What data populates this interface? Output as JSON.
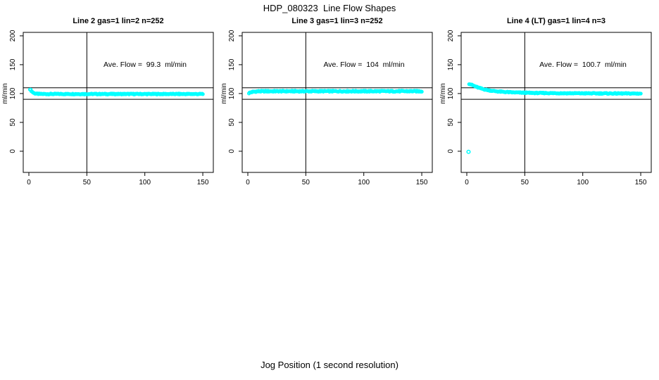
{
  "figure": {
    "title": "HDP_080323  Line Flow Shapes",
    "xlabel": "Jog Position (1 second resolution)",
    "background": "#ffffff"
  },
  "chart_data": {
    "type": "scatter",
    "title": "HDP_080323  Line Flow Shapes",
    "xlabel": "Jog Position (1 second resolution)",
    "ylabel": "ml/min",
    "point_color": "#00ffff",
    "axis_color": "#000000",
    "x_ticks": [
      0,
      50,
      100,
      150
    ],
    "y_ticks": [
      0,
      50,
      100,
      150,
      200
    ],
    "xlim": [
      -5,
      157
    ],
    "ylim": [
      -36,
      206
    ],
    "grid": false,
    "ref_lines_y": [
      90,
      110
    ],
    "ref_line_x": 50,
    "n_points": 252,
    "annotation_pos": {
      "x": 100,
      "y": 150
    },
    "panels": [
      {
        "title": "Line 2 gas=1 lin=2 n=252",
        "ave_flow": 99.3,
        "ave_flow_text": "Ave. Flow =  99.3  ml/min",
        "spread": 1.6,
        "profile": [
          [
            1,
            107.5
          ],
          [
            1.6,
            106.0
          ],
          [
            2.2,
            104.5
          ],
          [
            3,
            102.8
          ],
          [
            4,
            101.3
          ],
          [
            5,
            100.4
          ],
          [
            6.5,
            99.7
          ],
          [
            8,
            99.4
          ],
          [
            12,
            99.2
          ],
          [
            150,
            99.2
          ]
        ],
        "outliers": []
      },
      {
        "title": "Line 3 gas=1 lin=3 n=252",
        "ave_flow": 104,
        "ave_flow_text": "Ave. Flow =  104  ml/min",
        "spread": 2.0,
        "profile": [
          [
            1,
            100.8
          ],
          [
            2,
            101.7
          ],
          [
            3,
            102.4
          ],
          [
            4.5,
            103.0
          ],
          [
            6,
            103.4
          ],
          [
            9,
            103.8
          ],
          [
            14,
            104.0
          ],
          [
            150,
            104.0
          ]
        ],
        "outliers": []
      },
      {
        "title": "Line 4 (LT) gas=1 lin=4 n=3",
        "ave_flow": 100.7,
        "ave_flow_text": "Ave. Flow =  100.7  ml/min",
        "spread": 1.6,
        "profile": [
          [
            2,
            117
          ],
          [
            3,
            116.2
          ],
          [
            4,
            115.3
          ],
          [
            5,
            114.4
          ],
          [
            6,
            113.5
          ],
          [
            8,
            111.8
          ],
          [
            10,
            110.3
          ],
          [
            12,
            109.0
          ],
          [
            14,
            107.8
          ],
          [
            16,
            106.8
          ],
          [
            18,
            106.0
          ],
          [
            20,
            105.3
          ],
          [
            24,
            104.2
          ],
          [
            28,
            103.4
          ],
          [
            32,
            102.8
          ],
          [
            36,
            102.4
          ],
          [
            40,
            102.0
          ],
          [
            50,
            101.4
          ],
          [
            60,
            101.0
          ],
          [
            80,
            100.6
          ],
          [
            100,
            100.4
          ],
          [
            120,
            100.2
          ],
          [
            150,
            100.0
          ]
        ],
        "outliers": [
          [
            1.5,
            -1
          ]
        ]
      }
    ]
  }
}
